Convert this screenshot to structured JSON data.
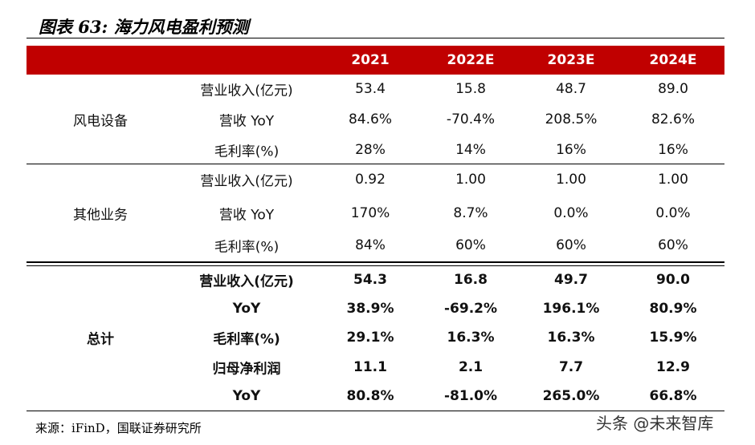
{
  "title": "图表 63: 海力风电盈利预测",
  "table": {
    "columns": [
      "2021",
      "2022E",
      "2023E",
      "2024E"
    ],
    "groups": [
      {
        "label": "风电设备",
        "rows": [
          {
            "metric": "营业收入(亿元)",
            "values": [
              "53.4",
              "15.8",
              "48.7",
              "89.0"
            ]
          },
          {
            "metric": "营收 YoY",
            "values": [
              "84.6%",
              "-70.4%",
              "208.5%",
              "82.6%"
            ]
          },
          {
            "metric": "毛利率(%)",
            "values": [
              "28%",
              "14%",
              "16%",
              "16%"
            ]
          }
        ]
      },
      {
        "label": "其他业务",
        "rows": [
          {
            "metric": "营业收入(亿元)",
            "values": [
              "0.92",
              "1.00",
              "1.00",
              "1.00"
            ]
          },
          {
            "metric": "营收 YoY",
            "values": [
              "170%",
              "8.7%",
              "0.0%",
              "0.0%"
            ]
          },
          {
            "metric": "毛利率(%)",
            "values": [
              "84%",
              "60%",
              "60%",
              "60%"
            ]
          }
        ]
      },
      {
        "label": "总计",
        "rows": [
          {
            "metric": "营业收入(亿元)",
            "values": [
              "54.3",
              "16.8",
              "49.7",
              "90.0"
            ]
          },
          {
            "metric": "YoY",
            "values": [
              "38.9%",
              "-69.2%",
              "196.1%",
              "80.9%"
            ]
          },
          {
            "metric": "毛利率(%)",
            "values": [
              "29.1%",
              "16.3%",
              "16.3%",
              "15.9%"
            ]
          },
          {
            "metric": "归母净利润",
            "values": [
              "11.1",
              "2.1",
              "7.7",
              "12.9"
            ]
          },
          {
            "metric": "YoY",
            "values": [
              "80.8%",
              "-81.0%",
              "265.0%",
              "66.8%"
            ]
          }
        ]
      }
    ]
  },
  "source": "来源：iFinD，国联证券研究所",
  "watermark": "头条 @未来智库"
}
